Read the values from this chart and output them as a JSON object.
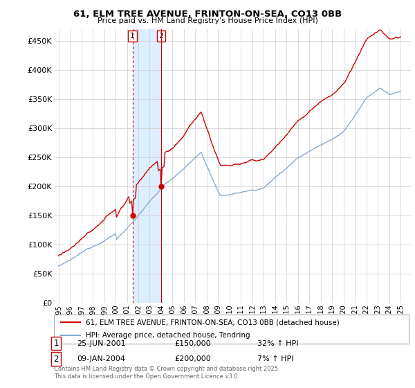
{
  "title": "61, ELM TREE AVENUE, FRINTON-ON-SEA, CO13 0BB",
  "subtitle": "Price paid vs. HM Land Registry's House Price Index (HPI)",
  "ylim": [
    0,
    470000
  ],
  "yticks": [
    0,
    50000,
    100000,
    150000,
    200000,
    250000,
    300000,
    350000,
    400000,
    450000
  ],
  "ytick_labels": [
    "£0",
    "£50K",
    "£100K",
    "£150K",
    "£200K",
    "£250K",
    "£300K",
    "£350K",
    "£400K",
    "£450K"
  ],
  "red_line_color": "#cc0000",
  "blue_line_color": "#88aacc",
  "shade_color": "#ddeeff",
  "marker1_year": 2001.5,
  "marker1_value": 150000,
  "marker2_year": 2004.04,
  "marker2_value": 200000,
  "marker1_date_str": "25-JUN-2001",
  "marker1_price_str": "£150,000",
  "marker1_hpi_str": "32% ↑ HPI",
  "marker2_date_str": "09-JAN-2004",
  "marker2_price_str": "£200,000",
  "marker2_hpi_str": "7% ↑ HPI",
  "legend_red_label": "61, ELM TREE AVENUE, FRINTON-ON-SEA, CO13 0BB (detached house)",
  "legend_blue_label": "HPI: Average price, detached house, Tendring",
  "footnote": "Contains HM Land Registry data © Crown copyright and database right 2025.\nThis data is licensed under the Open Government Licence v3.0.",
  "background_color": "#ffffff",
  "grid_color": "#cccccc"
}
